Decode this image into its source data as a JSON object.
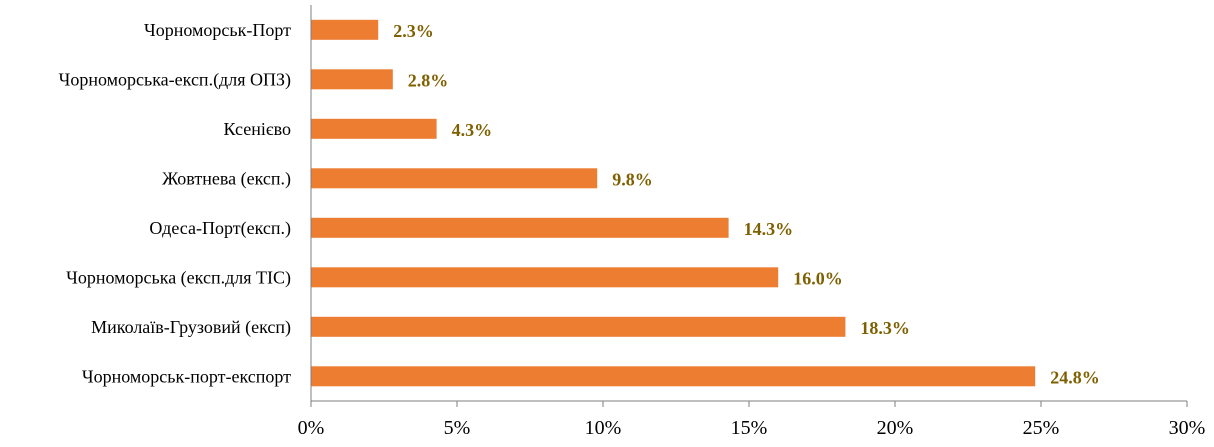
{
  "chart_data": {
    "type": "bar",
    "orientation": "horizontal",
    "title": "",
    "xlabel": "",
    "ylabel": "",
    "categories": [
      "Чорноморськ-Порт",
      "Чорноморська-експ.(для ОПЗ)",
      "Ксенієво",
      "Жовтнева (експ.)",
      "Одеса-Порт(експ.)",
      "Чорноморська (експ.для ТІС)",
      "Миколаїв-Грузовий (експ)",
      "Чорноморськ-порт-експорт"
    ],
    "values": [
      2.3,
      2.8,
      4.3,
      9.8,
      14.3,
      16.0,
      18.3,
      24.8
    ],
    "data_labels": [
      "2.3%",
      "2.8%",
      "4.3%",
      "9.8%",
      "14.3%",
      "16.0%",
      "18.3%",
      "24.8%"
    ],
    "xlim": [
      0,
      30
    ],
    "ticks": [
      0,
      5,
      10,
      15,
      20,
      25,
      30
    ],
    "tick_labels": [
      "0%",
      "5%",
      "10%",
      "15%",
      "20%",
      "25%",
      "30%"
    ],
    "grid": false,
    "legend": "none",
    "colors": {
      "bar": "#ED7D31",
      "data_label": "#7F6000",
      "axis": "#7F7F7F"
    }
  }
}
